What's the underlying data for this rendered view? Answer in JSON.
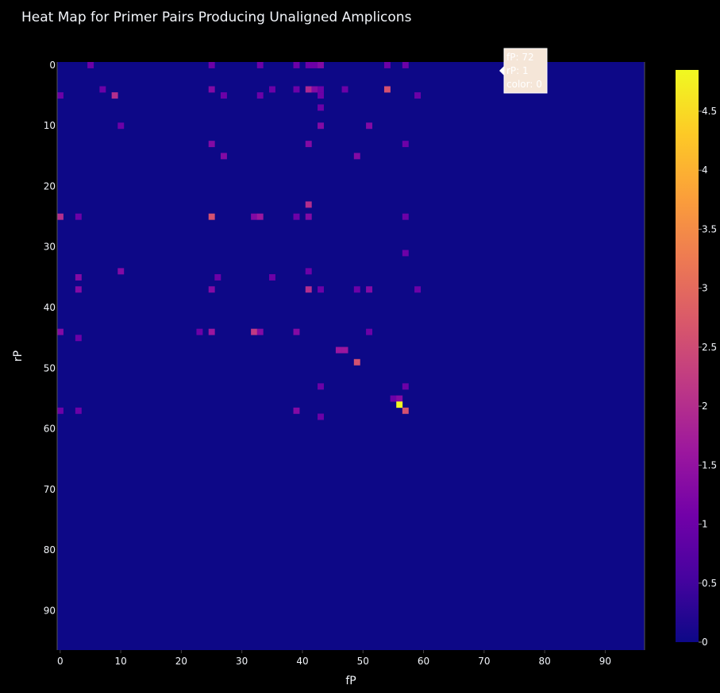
{
  "chart_data": {
    "type": "heatmap",
    "title": "Heat Map for Primer Pairs Producing Unaligned Amplicons",
    "xlabel": "fP",
    "ylabel": "rP",
    "xlim": [
      -0.5,
      96.5
    ],
    "ylim": [
      96.5,
      -0.5
    ],
    "x_ticks": [
      0,
      10,
      20,
      30,
      40,
      50,
      60,
      70,
      80,
      90
    ],
    "y_ticks": [
      0,
      10,
      20,
      30,
      40,
      50,
      60,
      70,
      80,
      90
    ],
    "grid": false,
    "background_value": 0,
    "colorscale": [
      "#0d0887",
      "#46039f",
      "#7201a8",
      "#9c179e",
      "#bd3786",
      "#d8576b",
      "#ed7953",
      "#fb9f3a",
      "#fdca26",
      "#f0f921"
    ],
    "zmin": 0,
    "zmax": 4.85,
    "colorbar_ticks": [
      0,
      0.5,
      1,
      1.5,
      2,
      2.5,
      3,
      3.5,
      4,
      4.5
    ],
    "cells": [
      {
        "x": 5,
        "y": 0,
        "z": 1
      },
      {
        "x": 25,
        "y": 0,
        "z": 1
      },
      {
        "x": 33,
        "y": 0,
        "z": 1
      },
      {
        "x": 39,
        "y": 0,
        "z": 1
      },
      {
        "x": 41,
        "y": 0,
        "z": 1
      },
      {
        "x": 42,
        "y": 0,
        "z": 1
      },
      {
        "x": 43,
        "y": 0,
        "z": 1.3
      },
      {
        "x": 54,
        "y": 0,
        "z": 1
      },
      {
        "x": 57,
        "y": 0,
        "z": 1
      },
      {
        "x": 7,
        "y": 4,
        "z": 1
      },
      {
        "x": 25,
        "y": 4,
        "z": 1.3
      },
      {
        "x": 35,
        "y": 4,
        "z": 1
      },
      {
        "x": 39,
        "y": 4,
        "z": 1
      },
      {
        "x": 41,
        "y": 4,
        "z": 1.9
      },
      {
        "x": 42,
        "y": 4,
        "z": 1.3
      },
      {
        "x": 43,
        "y": 4,
        "z": 1
      },
      {
        "x": 47,
        "y": 4,
        "z": 1
      },
      {
        "x": 54,
        "y": 4,
        "z": 2.6
      },
      {
        "x": 0,
        "y": 5,
        "z": 1
      },
      {
        "x": 9,
        "y": 5,
        "z": 2
      },
      {
        "x": 27,
        "y": 5,
        "z": 1
      },
      {
        "x": 33,
        "y": 5,
        "z": 1
      },
      {
        "x": 43,
        "y": 5,
        "z": 1
      },
      {
        "x": 59,
        "y": 5,
        "z": 1
      },
      {
        "x": 43,
        "y": 7,
        "z": 1
      },
      {
        "x": 10,
        "y": 10,
        "z": 1
      },
      {
        "x": 43,
        "y": 10,
        "z": 1.3
      },
      {
        "x": 51,
        "y": 10,
        "z": 1.3
      },
      {
        "x": 25,
        "y": 13,
        "z": 1.3
      },
      {
        "x": 41,
        "y": 13,
        "z": 1.3
      },
      {
        "x": 57,
        "y": 13,
        "z": 1
      },
      {
        "x": 27,
        "y": 15,
        "z": 1.3
      },
      {
        "x": 49,
        "y": 15,
        "z": 1.3
      },
      {
        "x": 41,
        "y": 23,
        "z": 2
      },
      {
        "x": 0,
        "y": 25,
        "z": 2
      },
      {
        "x": 3,
        "y": 25,
        "z": 1
      },
      {
        "x": 25,
        "y": 25,
        "z": 2.6
      },
      {
        "x": 32,
        "y": 25,
        "z": 1.3
      },
      {
        "x": 33,
        "y": 25,
        "z": 1.6
      },
      {
        "x": 39,
        "y": 25,
        "z": 1
      },
      {
        "x": 41,
        "y": 25,
        "z": 1.3
      },
      {
        "x": 57,
        "y": 25,
        "z": 1
      },
      {
        "x": 57,
        "y": 31,
        "z": 1
      },
      {
        "x": 10,
        "y": 34,
        "z": 1.3
      },
      {
        "x": 41,
        "y": 34,
        "z": 1
      },
      {
        "x": 3,
        "y": 35,
        "z": 1.3
      },
      {
        "x": 26,
        "y": 35,
        "z": 1
      },
      {
        "x": 35,
        "y": 35,
        "z": 1
      },
      {
        "x": 3,
        "y": 37,
        "z": 1.3
      },
      {
        "x": 25,
        "y": 37,
        "z": 1.3
      },
      {
        "x": 41,
        "y": 37,
        "z": 2
      },
      {
        "x": 43,
        "y": 37,
        "z": 1
      },
      {
        "x": 49,
        "y": 37,
        "z": 1
      },
      {
        "x": 51,
        "y": 37,
        "z": 1.3
      },
      {
        "x": 59,
        "y": 37,
        "z": 1
      },
      {
        "x": 0,
        "y": 44,
        "z": 1.3
      },
      {
        "x": 23,
        "y": 44,
        "z": 1
      },
      {
        "x": 25,
        "y": 44,
        "z": 1.6
      },
      {
        "x": 32,
        "y": 44,
        "z": 2.2
      },
      {
        "x": 33,
        "y": 44,
        "z": 1.3
      },
      {
        "x": 39,
        "y": 44,
        "z": 1.3
      },
      {
        "x": 51,
        "y": 44,
        "z": 1
      },
      {
        "x": 3,
        "y": 45,
        "z": 1
      },
      {
        "x": 46,
        "y": 47,
        "z": 1.6
      },
      {
        "x": 47,
        "y": 47,
        "z": 1.6
      },
      {
        "x": 49,
        "y": 49,
        "z": 2.6
      },
      {
        "x": 43,
        "y": 53,
        "z": 1
      },
      {
        "x": 57,
        "y": 53,
        "z": 1
      },
      {
        "x": 55,
        "y": 55,
        "z": 1
      },
      {
        "x": 56,
        "y": 55,
        "z": 1.3
      },
      {
        "x": 56,
        "y": 56,
        "z": 4.85
      },
      {
        "x": 0,
        "y": 57,
        "z": 1
      },
      {
        "x": 3,
        "y": 57,
        "z": 1
      },
      {
        "x": 39,
        "y": 57,
        "z": 1.3
      },
      {
        "x": 57,
        "y": 57,
        "z": 2.6
      },
      {
        "x": 43,
        "y": 58,
        "z": 1
      }
    ],
    "hover": {
      "lines": [
        "fP: 72",
        "rP: 1",
        "color: 0"
      ]
    }
  }
}
